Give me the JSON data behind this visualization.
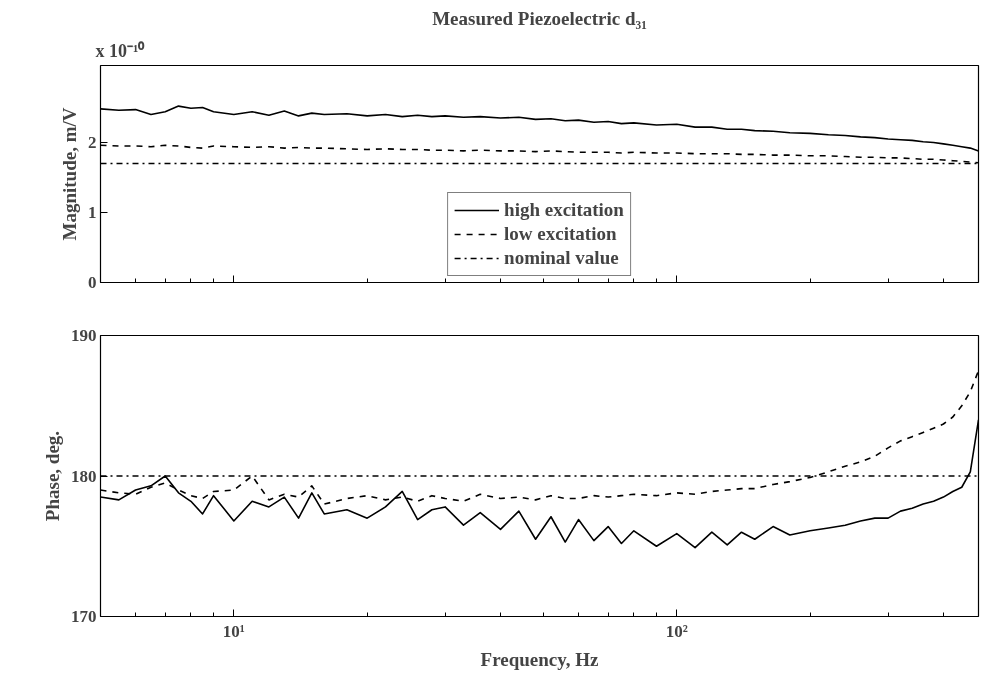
{
  "chart_data": [
    {
      "type": "line",
      "title": "Measured Piezoelectric d₃₁",
      "ylabel": "Magnitude, m/V",
      "annotations": [
        "x 10⁻¹⁰"
      ],
      "log": "x",
      "xlim": [
        5,
        480
      ],
      "ylim": [
        0,
        3.1
      ],
      "yticks": [
        0,
        1,
        2
      ],
      "xticks": [
        {
          "value": 6,
          "label": null
        },
        {
          "value": 7,
          "label": null
        },
        {
          "value": 8,
          "label": null
        },
        {
          "value": 9,
          "label": null
        },
        {
          "value": 10,
          "label": null
        },
        {
          "value": 20,
          "label": null
        },
        {
          "value": 30,
          "label": null
        },
        {
          "value": 40,
          "label": null
        },
        {
          "value": 50,
          "label": null
        },
        {
          "value": 60,
          "label": null
        },
        {
          "value": 70,
          "label": null
        },
        {
          "value": 80,
          "label": null
        },
        {
          "value": 90,
          "label": null
        },
        {
          "value": 100,
          "label": null
        },
        {
          "value": 200,
          "label": null
        },
        {
          "value": 300,
          "label": null
        },
        {
          "value": 400,
          "label": null
        }
      ],
      "tick_labels": "y",
      "grid": false,
      "legend": "bottom",
      "ref_lines": [
        {
          "axis": "y",
          "value": 1.7,
          "label": "nominal value",
          "color": "#000000",
          "line_style": "dashdot"
        }
      ],
      "x": [
        5,
        5.5,
        6,
        6.5,
        7,
        7.5,
        8,
        8.5,
        9,
        10,
        11,
        12,
        13,
        14,
        15,
        16,
        18,
        20,
        22,
        24,
        26,
        28,
        30,
        33,
        36,
        40,
        44,
        48,
        52,
        56,
        60,
        65,
        70,
        75,
        80,
        90,
        100,
        110,
        120,
        130,
        140,
        150,
        165,
        180,
        200,
        220,
        240,
        260,
        280,
        300,
        320,
        340,
        360,
        380,
        400,
        420,
        440,
        460,
        480
      ],
      "series": [
        {
          "name": "high excitation",
          "color": "#000000",
          "line_style": "solid",
          "values": [
            2.48,
            2.46,
            2.47,
            2.4,
            2.44,
            2.52,
            2.49,
            2.5,
            2.44,
            2.4,
            2.44,
            2.39,
            2.45,
            2.38,
            2.42,
            2.4,
            2.41,
            2.38,
            2.4,
            2.37,
            2.39,
            2.37,
            2.38,
            2.36,
            2.37,
            2.35,
            2.36,
            2.33,
            2.34,
            2.31,
            2.32,
            2.29,
            2.3,
            2.27,
            2.28,
            2.25,
            2.26,
            2.22,
            2.22,
            2.19,
            2.19,
            2.17,
            2.16,
            2.14,
            2.13,
            2.11,
            2.1,
            2.08,
            2.07,
            2.05,
            2.04,
            2.03,
            2.01,
            2.0,
            1.98,
            1.96,
            1.94,
            1.92,
            1.88
          ]
        },
        {
          "name": "low excitation",
          "color": "#000000",
          "line_style": "dashed",
          "values": [
            1.96,
            1.95,
            1.95,
            1.94,
            1.96,
            1.95,
            1.93,
            1.92,
            1.95,
            1.94,
            1.93,
            1.94,
            1.92,
            1.93,
            1.92,
            1.92,
            1.91,
            1.9,
            1.91,
            1.9,
            1.9,
            1.89,
            1.89,
            1.88,
            1.89,
            1.88,
            1.88,
            1.87,
            1.88,
            1.87,
            1.86,
            1.86,
            1.86,
            1.85,
            1.86,
            1.85,
            1.85,
            1.84,
            1.84,
            1.84,
            1.83,
            1.83,
            1.82,
            1.82,
            1.81,
            1.81,
            1.8,
            1.79,
            1.79,
            1.78,
            1.78,
            1.77,
            1.76,
            1.76,
            1.75,
            1.74,
            1.73,
            1.72,
            1.71
          ]
        }
      ]
    },
    {
      "type": "line",
      "xlabel": "Frequency, Hz",
      "ylabel": "Phase, deg.",
      "log": "x",
      "xlim": [
        5,
        480
      ],
      "ylim": [
        170,
        190
      ],
      "yticks": [
        170,
        180,
        190
      ],
      "xticks": [
        {
          "value": 6,
          "label": null
        },
        {
          "value": 7,
          "label": null
        },
        {
          "value": 8,
          "label": null
        },
        {
          "value": 9,
          "label": null
        },
        {
          "value": 10,
          "label": "10¹"
        },
        {
          "value": 20,
          "label": null
        },
        {
          "value": 30,
          "label": null
        },
        {
          "value": 40,
          "label": null
        },
        {
          "value": 50,
          "label": null
        },
        {
          "value": 60,
          "label": null
        },
        {
          "value": 70,
          "label": null
        },
        {
          "value": 80,
          "label": null
        },
        {
          "value": 90,
          "label": null
        },
        {
          "value": 100,
          "label": "10²"
        },
        {
          "value": 200,
          "label": null
        },
        {
          "value": 300,
          "label": null
        },
        {
          "value": 400,
          "label": null
        }
      ],
      "grid": false,
      "ref_lines": [
        {
          "axis": "y",
          "value": 180.0,
          "color": "#000000",
          "line_style": "dashdot"
        }
      ],
      "x": [
        5,
        5.5,
        6,
        6.5,
        7,
        7.5,
        8,
        8.5,
        9,
        10,
        11,
        12,
        13,
        14,
        15,
        16,
        18,
        20,
        22,
        24,
        26,
        28,
        30,
        33,
        36,
        40,
        44,
        48,
        52,
        56,
        60,
        65,
        70,
        75,
        80,
        90,
        100,
        110,
        120,
        130,
        140,
        150,
        165,
        180,
        200,
        220,
        240,
        260,
        280,
        300,
        320,
        340,
        360,
        380,
        400,
        420,
        440,
        460,
        480
      ],
      "series": [
        {
          "color": "#000000",
          "line_style": "solid",
          "values": [
            178.5,
            178.3,
            179.0,
            179.3,
            180.0,
            178.8,
            178.2,
            177.3,
            178.6,
            176.8,
            178.2,
            177.8,
            178.5,
            177.0,
            178.8,
            177.3,
            177.6,
            177.0,
            177.8,
            178.9,
            176.9,
            177.6,
            177.8,
            176.5,
            177.4,
            176.2,
            177.5,
            175.5,
            177.1,
            175.3,
            176.9,
            175.4,
            176.4,
            175.2,
            176.1,
            175.0,
            175.9,
            174.9,
            176.0,
            175.1,
            176.0,
            175.5,
            176.4,
            175.8,
            176.1,
            176.3,
            176.5,
            176.8,
            177.0,
            177.0,
            177.5,
            177.7,
            178.0,
            178.2,
            178.5,
            178.9,
            179.2,
            180.3,
            184.0
          ]
        },
        {
          "color": "#000000",
          "line_style": "dashed",
          "values": [
            179.0,
            178.8,
            178.7,
            179.2,
            179.5,
            179.0,
            178.6,
            178.4,
            178.9,
            179.0,
            180.0,
            178.3,
            178.7,
            178.5,
            179.3,
            178.0,
            178.4,
            178.6,
            178.3,
            178.5,
            178.2,
            178.6,
            178.4,
            178.2,
            178.7,
            178.4,
            178.5,
            178.3,
            178.6,
            178.4,
            178.4,
            178.6,
            178.5,
            178.6,
            178.7,
            178.6,
            178.8,
            178.7,
            178.9,
            179.0,
            179.1,
            179.1,
            179.4,
            179.6,
            179.9,
            180.3,
            180.7,
            181.0,
            181.4,
            182.0,
            182.5,
            182.8,
            183.1,
            183.4,
            183.7,
            184.2,
            185.0,
            186.0,
            187.5
          ]
        }
      ]
    }
  ]
}
